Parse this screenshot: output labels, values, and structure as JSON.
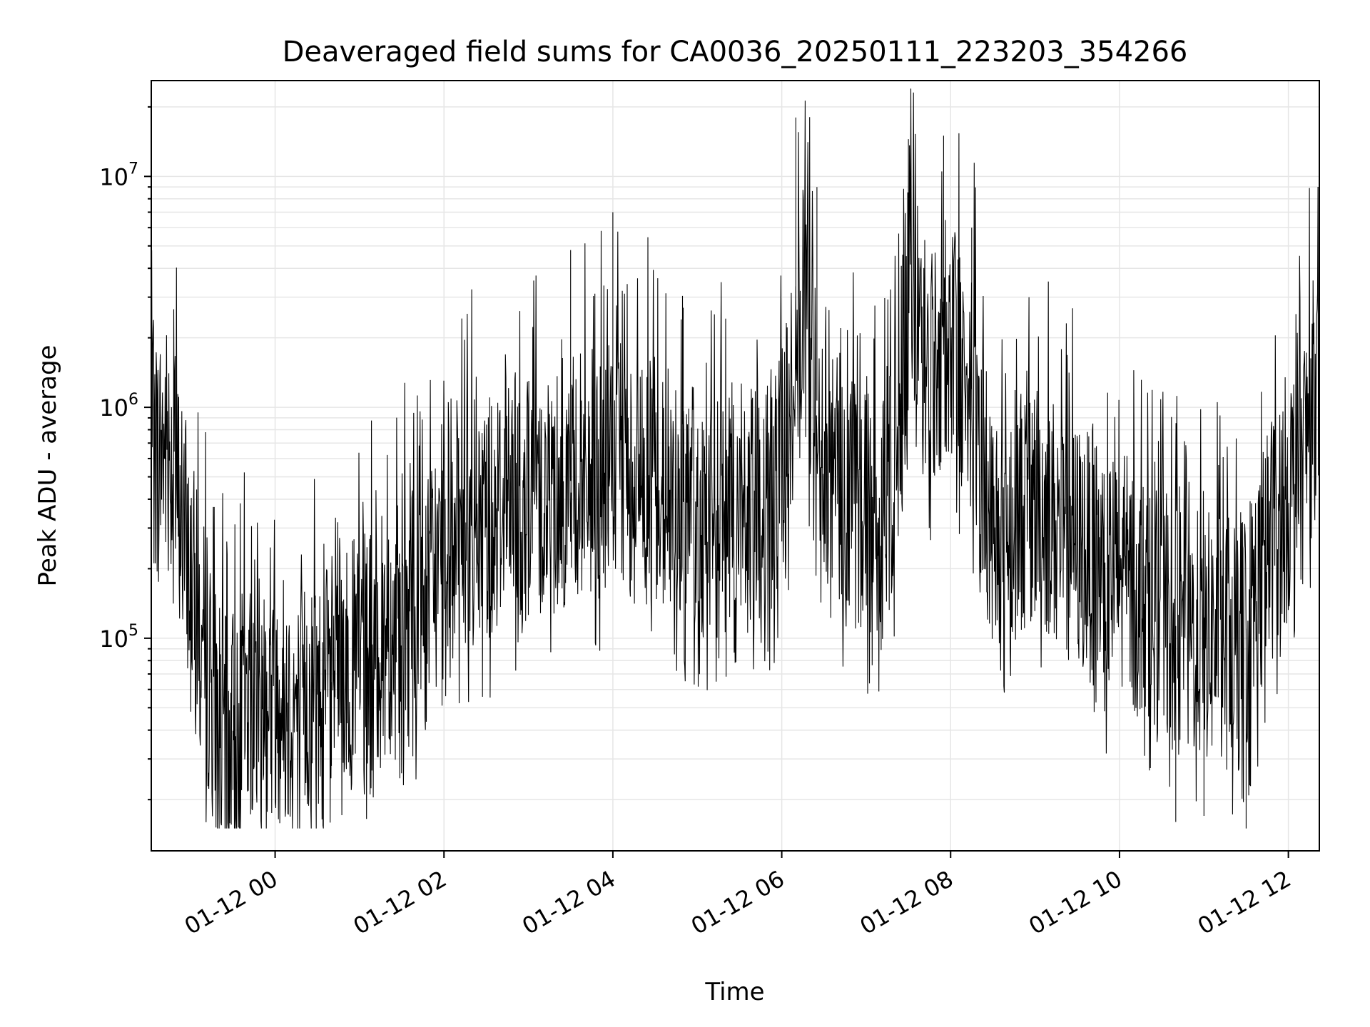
{
  "chart_data": {
    "type": "line",
    "title": "Deaveraged field sums for CA0036_20250111_223203_354266",
    "xlabel": "Time",
    "ylabel": "Peak ADU - average",
    "yscale": "log",
    "grid": true,
    "xlim": [
      "2025-01-11 22:32",
      "2025-01-12 12:22"
    ],
    "ylim": [
      12000,
      26000000
    ],
    "x_tick_labels": [
      "01-12 00",
      "01-12 02",
      "01-12 04",
      "01-12 06",
      "01-12 08",
      "01-12 10",
      "01-12 12"
    ],
    "x_tick_values": [
      "2025-01-12 00:00",
      "2025-01-12 02:00",
      "2025-01-12 04:00",
      "2025-01-12 06:00",
      "2025-01-12 08:00",
      "2025-01-12 10:00",
      "2025-01-12 12:00"
    ],
    "y_tick_labels": [
      {
        "base": "10",
        "exp": "5",
        "value": 100000
      },
      {
        "base": "10",
        "exp": "6",
        "value": 1000000
      },
      {
        "base": "10",
        "exp": "7",
        "value": 10000000
      }
    ],
    "series": [
      {
        "color": "#000000",
        "points": [
          [
            "2025-01-11 22:32",
            620000
          ],
          [
            "2025-01-11 22:45",
            700000
          ],
          [
            "2025-01-11 22:55",
            300000
          ],
          [
            "2025-01-11 23:05",
            120000
          ],
          [
            "2025-01-11 23:15",
            60000
          ],
          [
            "2025-01-11 23:25",
            35000
          ],
          [
            "2025-01-11 23:35",
            45000
          ],
          [
            "2025-01-11 23:45",
            65000
          ],
          [
            "2025-01-12 00:00",
            60000
          ],
          [
            "2025-01-12 00:15",
            50000
          ],
          [
            "2025-01-12 00:30",
            55000
          ],
          [
            "2025-01-12 00:45",
            70000
          ],
          [
            "2025-01-12 01:00",
            80000
          ],
          [
            "2025-01-12 01:15",
            95000
          ],
          [
            "2025-01-12 01:30",
            110000
          ],
          [
            "2025-01-12 01:45",
            140000
          ],
          [
            "2025-01-12 02:00",
            220000
          ],
          [
            "2025-01-12 02:20",
            300000
          ],
          [
            "2025-01-12 02:40",
            380000
          ],
          [
            "2025-01-12 03:00",
            420000
          ],
          [
            "2025-01-12 03:30",
            480000
          ],
          [
            "2025-01-12 04:00",
            550000
          ],
          [
            "2025-01-12 04:30",
            480000
          ],
          [
            "2025-01-12 05:00",
            350000
          ],
          [
            "2025-01-12 05:30",
            300000
          ],
          [
            "2025-01-12 06:00",
            500000
          ],
          [
            "2025-01-12 06:15",
            2500000
          ],
          [
            "2025-01-12 06:30",
            700000
          ],
          [
            "2025-01-12 06:45",
            400000
          ],
          [
            "2025-01-12 07:00",
            350000
          ],
          [
            "2025-01-12 07:15",
            300000
          ],
          [
            "2025-01-12 07:30",
            3000000
          ],
          [
            "2025-01-12 07:45",
            1500000
          ],
          [
            "2025-01-12 08:00",
            2000000
          ],
          [
            "2025-01-12 08:15",
            1200000
          ],
          [
            "2025-01-12 08:30",
            300000
          ],
          [
            "2025-01-12 09:00",
            400000
          ],
          [
            "2025-01-12 09:30",
            250000
          ],
          [
            "2025-01-12 10:00",
            180000
          ],
          [
            "2025-01-12 10:30",
            120000
          ],
          [
            "2025-01-12 11:00",
            100000
          ],
          [
            "2025-01-12 11:30",
            110000
          ],
          [
            "2025-01-12 11:50",
            300000
          ],
          [
            "2025-01-12 12:10",
            600000
          ],
          [
            "2025-01-12 12:22",
            1400000
          ]
        ],
        "peaks": [
          [
            "2025-01-12 03:30",
            4800000
          ],
          [
            "2025-01-12 04:00",
            7000000
          ],
          [
            "2025-01-12 04:50",
            2700000
          ],
          [
            "2025-01-12 06:10",
            18000000
          ],
          [
            "2025-01-12 06:25",
            9000000
          ],
          [
            "2025-01-12 07:30",
            14500000
          ],
          [
            "2025-01-12 07:55",
            15000000
          ],
          [
            "2025-01-12 08:15",
            6000000
          ],
          [
            "2025-01-12 12:22",
            2500000
          ]
        ],
        "troughs": [
          [
            "2025-01-11 23:30",
            22000
          ],
          [
            "2025-01-12 00:40",
            28000
          ],
          [
            "2025-01-12 10:40",
            16000
          ],
          [
            "2025-01-12 11:30",
            15000
          ],
          [
            "2025-01-12 11:00",
            17000
          ]
        ]
      }
    ]
  }
}
